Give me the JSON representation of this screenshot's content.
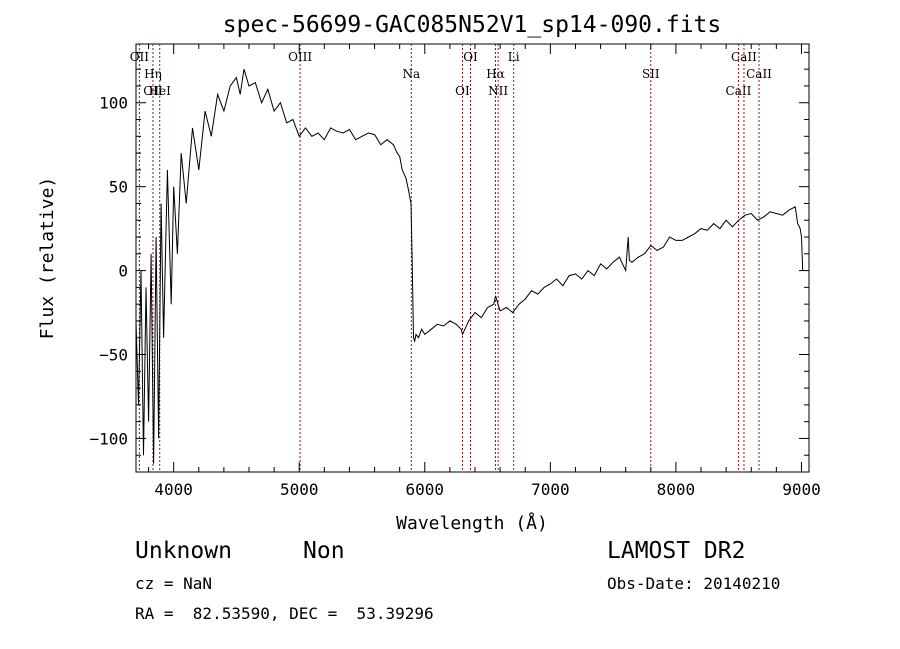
{
  "chart_data": {
    "type": "line",
    "title": "spec-56699-GAC085N52V1_sp14-090.fits",
    "xlabel": "Wavelength (Å)",
    "ylabel": "Flux (relative)",
    "xlim": [
      3700,
      9060
    ],
    "ylim": [
      -120,
      135
    ],
    "xticks": [
      4000,
      5000,
      6000,
      7000,
      8000,
      9000
    ],
    "yticks": [
      -100,
      -50,
      0,
      50,
      100
    ],
    "grid": false,
    "series": [
      {
        "x": [
          3700,
          3720,
          3740,
          3760,
          3780,
          3800,
          3820,
          3840,
          3860,
          3880,
          3900,
          3920,
          3950,
          3980,
          4000,
          4030,
          4060,
          4100,
          4150,
          4200,
          4250,
          4300,
          4350,
          4400,
          4450,
          4500,
          4530,
          4560,
          4600,
          4650,
          4700,
          4750,
          4800,
          4850,
          4900,
          4950,
          5000,
          5050,
          5100,
          5150,
          5200,
          5250,
          5300,
          5350,
          5400,
          5450,
          5500,
          5550,
          5600,
          5650,
          5700,
          5750,
          5780,
          5800,
          5820,
          5850,
          5870,
          5890,
          5900,
          5910,
          5920,
          5930,
          5950,
          5975,
          6000,
          6050,
          6100,
          6150,
          6200,
          6250,
          6290,
          6300,
          6350,
          6400,
          6450,
          6500,
          6550,
          6563,
          6600,
          6650,
          6700,
          6750,
          6800,
          6850,
          6900,
          6950,
          7000,
          7050,
          7100,
          7150,
          7200,
          7250,
          7300,
          7350,
          7400,
          7450,
          7500,
          7550,
          7600,
          7620,
          7630,
          7650,
          7700,
          7750,
          7800,
          7850,
          7900,
          7950,
          8000,
          8050,
          8100,
          8150,
          8200,
          8250,
          8300,
          8350,
          8400,
          8450,
          8500,
          8550,
          8600,
          8650,
          8700,
          8750,
          8800,
          8850,
          8900,
          8950,
          8970,
          8990,
          9000,
          9010
        ],
        "y": [
          -30,
          -80,
          0,
          -110,
          -10,
          -90,
          10,
          -115,
          20,
          -100,
          40,
          -40,
          60,
          -20,
          50,
          10,
          70,
          40,
          85,
          60,
          95,
          80,
          105,
          95,
          110,
          115,
          105,
          120,
          110,
          112,
          100,
          108,
          95,
          100,
          88,
          90,
          80,
          85,
          80,
          82,
          78,
          85,
          83,
          82,
          84,
          78,
          80,
          82,
          81,
          75,
          78,
          75,
          70,
          68,
          60,
          55,
          48,
          40,
          5,
          -40,
          -42,
          -38,
          -40,
          -35,
          -38,
          -35,
          -32,
          -33,
          -30,
          -32,
          -35,
          -38,
          -30,
          -25,
          -28,
          -22,
          -20,
          -15,
          -24,
          -22,
          -25,
          -20,
          -17,
          -12,
          -14,
          -10,
          -8,
          -5,
          -9,
          -3,
          -2,
          -5,
          0,
          -3,
          4,
          1,
          5,
          8,
          0,
          20,
          6,
          5,
          8,
          10,
          15,
          12,
          14,
          20,
          18,
          18,
          20,
          22,
          25,
          24,
          28,
          25,
          30,
          26,
          30,
          33,
          34,
          30,
          32,
          35,
          34,
          33,
          36,
          38,
          28,
          25,
          20,
          0
        ]
      }
    ],
    "lines": [
      {
        "x": 3727,
        "labels": [
          "OII"
        ]
      },
      {
        "x": 3835,
        "labels": [
          "Hη",
          "OII"
        ]
      },
      {
        "x": 3889,
        "labels": [
          "HeI"
        ]
      },
      {
        "x": 5007,
        "labels": [
          "OIII"
        ]
      },
      {
        "x": 5893,
        "labels": [
          "Na"
        ]
      },
      {
        "x": 6300,
        "labels": [
          "OI"
        ]
      },
      {
        "x": 6364,
        "labels": [
          "OI"
        ]
      },
      {
        "x": 6563,
        "labels": [
          "Hα"
        ]
      },
      {
        "x": 6584,
        "labels": [
          "NII"
        ]
      },
      {
        "x": 6708,
        "labels": [
          "Li"
        ]
      },
      {
        "x": 7800,
        "labels": [
          "SII"
        ]
      },
      {
        "x": 8498,
        "labels": [
          "CaII"
        ]
      },
      {
        "x": 8542,
        "labels": [
          "CaII"
        ]
      },
      {
        "x": 8662,
        "labels": [
          "CaII"
        ]
      }
    ]
  },
  "info": {
    "class": "Unknown",
    "subclass": "Non",
    "survey": "LAMOST DR2",
    "cz": "cz = NaN",
    "obs_date": "Obs-Date: 20140210",
    "coords": "RA =  82.53590, DEC =  53.39296"
  }
}
